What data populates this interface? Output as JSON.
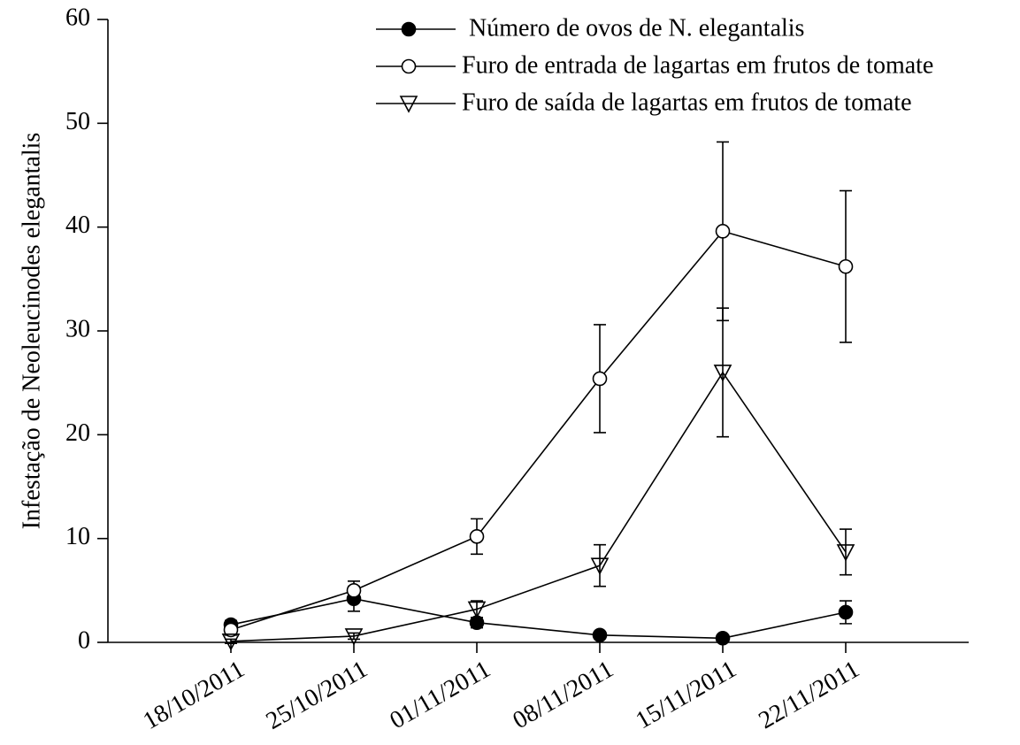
{
  "chart_data": {
    "type": "line",
    "y_label": "Infestação de Neoleucinodes elegantalis",
    "categories": [
      "18/10/2011",
      "25/10/2011",
      "01/11/2011",
      "08/11/2011",
      "15/11/2011",
      "22/11/2011"
    ],
    "series": [
      {
        "name": "Número de ovos de N. elegantalis",
        "color": "#000000",
        "marker": "filled-circle",
        "values": [
          1.7,
          4.2,
          1.9,
          0.7,
          0.4,
          2.9
        ],
        "errors": [
          0.4,
          1.2,
          0.5,
          0.3,
          0.2,
          1.1
        ]
      },
      {
        "name": "Furo de entrada de lagartas em frutos de tomate",
        "color": "#000000",
        "marker": "open-circle",
        "values": [
          1.2,
          5.0,
          10.2,
          25.4,
          39.6,
          36.2
        ],
        "errors": [
          0.5,
          0.9,
          1.7,
          5.2,
          8.6,
          7.3
        ]
      },
      {
        "name": "Furo de saída de lagartas em frutos de tomate",
        "color": "#000000",
        "marker": "triangle-down",
        "values": [
          0.1,
          0.6,
          3.2,
          7.4,
          26.0,
          8.7
        ],
        "errors": [
          0.2,
          0.3,
          0.8,
          2.0,
          6.2,
          2.2
        ]
      }
    ],
    "ylim": [
      0,
      60
    ],
    "yticks": [
      0,
      10,
      20,
      30,
      40,
      50,
      60
    ],
    "grid": false
  }
}
